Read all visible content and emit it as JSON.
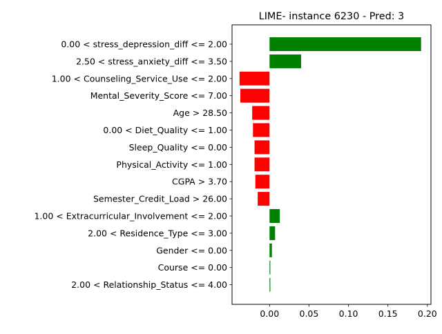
{
  "chart_data": {
    "type": "bar",
    "orientation": "horizontal",
    "title": "LIME- instance 6230 - Pred: 3",
    "xlabel": "",
    "ylabel": "",
    "xlim": [
      -0.0475,
      0.2045
    ],
    "xticks": [
      0.0,
      0.05,
      0.1,
      0.15,
      0.2
    ],
    "xtick_labels": [
      "0.00",
      "0.05",
      "0.10",
      "0.15",
      "0.20"
    ],
    "grid": false,
    "positive_color": "#008000",
    "negative_color": "#ff0000",
    "categories": [
      "0.00 < stress_depression_diff <= 2.00",
      "2.50 < stress_anxiety_diff <= 3.50",
      "1.00 < Counseling_Service_Use <= 2.00",
      "Mental_Severity_Score <= 7.00",
      "Age > 28.50",
      "0.00 < Diet_Quality <= 1.00",
      "Sleep_Quality <= 0.00",
      "Physical_Activity <= 1.00",
      "CGPA > 3.70",
      "Semester_Credit_Load > 26.00",
      "1.00 < Extracurricular_Involvement <= 2.00",
      "2.00 < Residence_Type <= 3.00",
      "Gender <= 0.00",
      "Course <= 0.00",
      "2.00 < Relationship_Status <= 4.00"
    ],
    "values": [
      0.192,
      0.04,
      -0.038,
      -0.037,
      -0.022,
      -0.021,
      -0.019,
      -0.019,
      -0.018,
      -0.015,
      0.013,
      0.007,
      0.003,
      0.001,
      0.001
    ]
  }
}
